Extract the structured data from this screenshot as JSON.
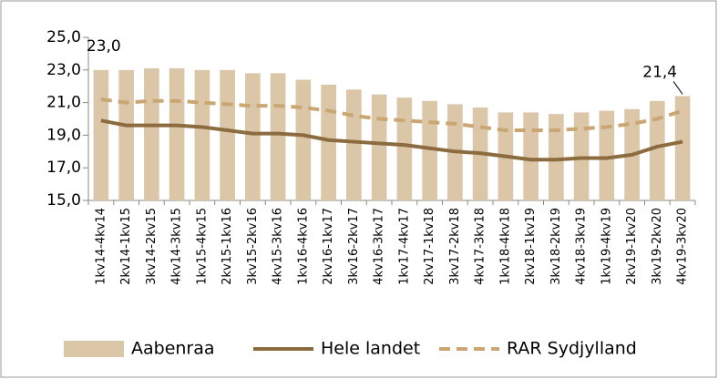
{
  "chart_data": {
    "type": "bar",
    "categories": [
      "1kv14-4kv14",
      "2kv14-1kv15",
      "3kv14-2kv15",
      "4kv14-3kv15",
      "1kv15-4kv15",
      "2kv15-1kv16",
      "3kv15-2kv16",
      "4kv15-3kv16",
      "1kv16-4kv16",
      "2kv16-1kv17",
      "3kv16-2kv17",
      "4kv16-3kv17",
      "1kv17-4kv17",
      "2kv17-1kv18",
      "3kv17-2kv18",
      "4kv17-3kv18",
      "1kv18-4kv18",
      "2kv18-1kv19",
      "3kv18-2kv19",
      "4kv18-3kv19",
      "1kv19-4kv19",
      "2kv19-1kv20",
      "3kv19-2kv20",
      "4kv19-3kv20"
    ],
    "series": [
      {
        "name": "Aabenraa",
        "type": "bar",
        "color": "#dcc6a8",
        "values": [
          23.0,
          23.0,
          23.1,
          23.1,
          23.0,
          23.0,
          22.8,
          22.8,
          22.4,
          22.1,
          21.8,
          21.5,
          21.3,
          21.1,
          20.9,
          20.7,
          20.4,
          20.4,
          20.3,
          20.4,
          20.5,
          20.6,
          21.1,
          21.4
        ],
        "value_labels": [
          "23,0",
          null,
          null,
          null,
          null,
          null,
          null,
          null,
          null,
          null,
          null,
          null,
          null,
          null,
          null,
          null,
          null,
          null,
          null,
          null,
          null,
          null,
          null,
          "21,4"
        ]
      },
      {
        "name": "Hele landet",
        "type": "line",
        "color": "#8c6b3f",
        "values": [
          19.9,
          19.6,
          19.6,
          19.6,
          19.5,
          19.3,
          19.1,
          19.1,
          19.0,
          18.7,
          18.6,
          18.5,
          18.4,
          18.2,
          18.0,
          17.9,
          17.7,
          17.5,
          17.5,
          17.6,
          17.6,
          17.8,
          18.3,
          18.6
        ]
      },
      {
        "name": "RAR Sydjylland",
        "type": "dashed-line",
        "color": "#caa672",
        "values": [
          21.2,
          21.0,
          21.1,
          21.1,
          21.0,
          20.9,
          20.8,
          20.8,
          20.7,
          20.5,
          20.2,
          20.0,
          19.9,
          19.8,
          19.7,
          19.5,
          19.3,
          19.3,
          19.3,
          19.4,
          19.5,
          19.7,
          20.0,
          20.5
        ]
      }
    ],
    "ylim": [
      15,
      25
    ],
    "yticks": [
      {
        "value": 15,
        "label": "15,0"
      },
      {
        "value": 17,
        "label": "17,0"
      },
      {
        "value": 19,
        "label": "19,0"
      },
      {
        "value": 21,
        "label": "21,0"
      },
      {
        "value": 23,
        "label": "23,0"
      },
      {
        "value": 25,
        "label": "25,0"
      }
    ],
    "legend": "bottom"
  }
}
